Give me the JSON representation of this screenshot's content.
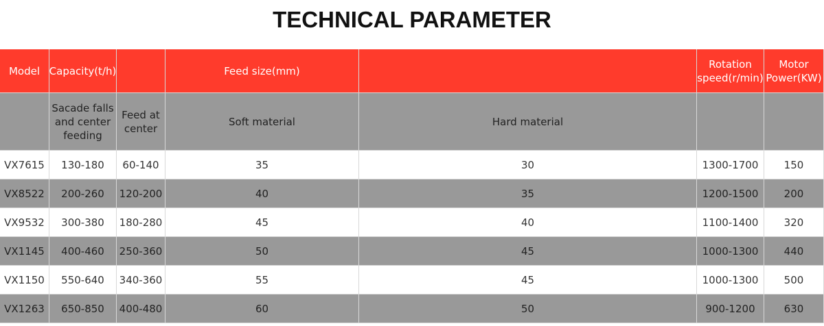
{
  "title": "TECHNICAL PARAMETER",
  "header_row": [
    "Model",
    "Capacity(t/h)",
    "Feed size(mm)",
    "Rotation speed(r/min)",
    "Motor Power(KW)"
  ],
  "sub_header": [
    "Sacade falls and center feeding",
    "Feed at center",
    "Soft material",
    "Hard material"
  ],
  "rows": [
    [
      "VX7615",
      "130-180",
      "60-140",
      35,
      30,
      "1300-1700",
      150
    ],
    [
      "VX8522",
      "200-260",
      "120-200",
      40,
      35,
      "1200-1500",
      200
    ],
    [
      "VX9532",
      "300-380",
      "180-280",
      45,
      40,
      "1100-1400",
      320
    ],
    [
      "VX1145",
      "400-460",
      "250-360",
      50,
      45,
      "1000-1300",
      440
    ],
    [
      "VX1150",
      "550-640",
      "340-360",
      55,
      45,
      "1000-1300",
      500
    ],
    [
      "VX1263",
      "650-850",
      "400-480",
      60,
      50,
      "900-1200",
      630
    ]
  ]
}
